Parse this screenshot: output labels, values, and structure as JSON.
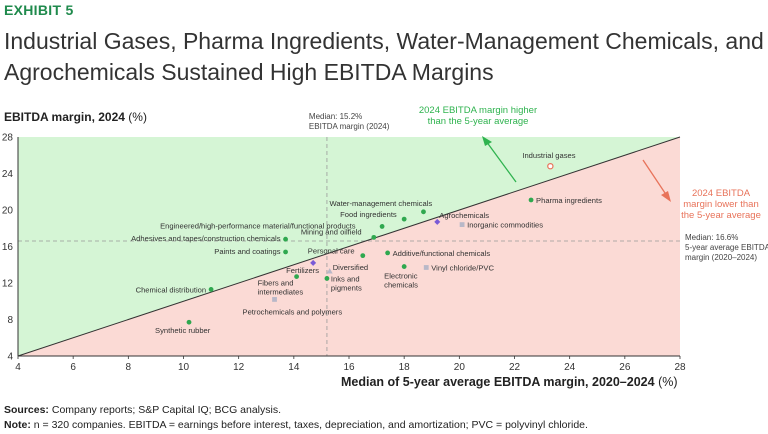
{
  "exhibit": "EXHIBIT 5",
  "title": "Industrial Gases, Pharma Ingredients, Water-Management Chemicals, and Agrochemicals Sustained High EBITDA Margins",
  "chart_data": {
    "type": "scatter",
    "ylabel_bold": "EBITDA margin, 2024",
    "ylabel_unit": "(%)",
    "xlabel_bold": "Median of 5-year average EBITDA margin, 2020–2024",
    "xlabel_unit": "(%)",
    "xlim": [
      4,
      28
    ],
    "ylim": [
      4,
      28
    ],
    "x_ticks": [
      4,
      6,
      8,
      10,
      12,
      14,
      16,
      18,
      20,
      22,
      24,
      26,
      28
    ],
    "y_ticks": [
      4,
      8,
      12,
      16,
      20,
      24,
      28
    ],
    "diagonal_from": [
      4,
      4
    ],
    "diagonal_to": [
      28,
      28
    ],
    "region_colors": {
      "above": "#d5f5d5",
      "below": "#fbdad5"
    },
    "median_vertical": {
      "value": 15.2,
      "lines": [
        "Median: 15.2%",
        "EBITDA margin (2024)"
      ]
    },
    "median_horizontal": {
      "value": 16.6,
      "lines": [
        "Median: 16.6%",
        "5-year average EBITDA",
        "margin (2020–2024)"
      ]
    },
    "annotation_higher": {
      "lines": [
        "2024 EBITDA margin higher",
        "than the 5-year average"
      ],
      "color": "#2fb34f"
    },
    "annotation_lower": {
      "lines": [
        "2024 EBITDA",
        "margin lower than",
        "the 5-year average"
      ],
      "color": "#e8735a"
    },
    "points": [
      {
        "x": 23.3,
        "y": 24.8,
        "lines": [
          "Industrial gases"
        ],
        "marker": "circle-open",
        "color": "#e8735a"
      },
      {
        "x": 22.6,
        "y": 21.1,
        "lines": [
          "Pharma ingredients"
        ],
        "marker": "circle",
        "color": "#2fa84f"
      },
      {
        "x": 18.7,
        "y": 19.8,
        "lines": [
          "Water-management chemicals"
        ],
        "marker": "circle",
        "color": "#2fa84f"
      },
      {
        "x": 18.0,
        "y": 19.0,
        "lines": [
          "Food ingredients"
        ],
        "marker": "circle",
        "color": "#2fa84f"
      },
      {
        "x": 19.2,
        "y": 18.7,
        "lines": [
          "Agrochemicals"
        ],
        "marker": "diamond",
        "color": "#7a5ad6"
      },
      {
        "x": 20.1,
        "y": 18.4,
        "lines": [
          "Inorganic commodities"
        ],
        "marker": "square",
        "color": "#b8b8c8"
      },
      {
        "x": 17.2,
        "y": 18.2,
        "lines": [
          "Engineered/high-performance material/functional products"
        ],
        "marker": "circle",
        "color": "#2fa84f"
      },
      {
        "x": 16.9,
        "y": 17.0,
        "lines": [
          "Mining and oilfield"
        ],
        "marker": "circle",
        "color": "#2fa84f"
      },
      {
        "x": 13.7,
        "y": 16.8,
        "lines": [
          "Adhesives and tapes/construction chemicals"
        ],
        "marker": "circle",
        "color": "#2fa84f"
      },
      {
        "x": 13.7,
        "y": 15.4,
        "lines": [
          "Paints and coatings"
        ],
        "marker": "circle",
        "color": "#2fa84f"
      },
      {
        "x": 16.5,
        "y": 15.0,
        "lines": [
          "Personal care"
        ],
        "marker": "circle",
        "color": "#2fa84f"
      },
      {
        "x": 17.4,
        "y": 15.3,
        "lines": [
          "Additive/functional chemicals"
        ],
        "marker": "circle",
        "color": "#2fa84f"
      },
      {
        "x": 14.7,
        "y": 14.2,
        "lines": [
          "Fertilizers"
        ],
        "marker": "diamond",
        "color": "#7a5ad6"
      },
      {
        "x": 15.3,
        "y": 13.3,
        "lines": [
          "Diversified"
        ],
        "marker": "triangle",
        "color": "#b8b8c8"
      },
      {
        "x": 18.8,
        "y": 13.7,
        "lines": [
          "Vinyl chloride/PVC"
        ],
        "marker": "square",
        "color": "#b8b8c8"
      },
      {
        "x": 18.0,
        "y": 13.8,
        "lines": [
          "Electronic",
          "chemicals"
        ],
        "marker": "circle",
        "color": "#2fa84f"
      },
      {
        "x": 15.2,
        "y": 12.5,
        "lines": [
          "Inks and",
          "pigments"
        ],
        "marker": "circle",
        "color": "#2fa84f"
      },
      {
        "x": 14.1,
        "y": 12.7,
        "lines": [
          "Fibers and",
          "intermediates"
        ],
        "marker": "circle",
        "color": "#2fa84f"
      },
      {
        "x": 11.0,
        "y": 11.3,
        "lines": [
          "Chemical distribution"
        ],
        "marker": "circle",
        "color": "#2fa84f"
      },
      {
        "x": 13.3,
        "y": 10.2,
        "lines": [
          "Petrochemicals and polymers"
        ],
        "marker": "square",
        "color": "#b8b8c8"
      },
      {
        "x": 10.2,
        "y": 7.7,
        "lines": [
          "Synthetic rubber"
        ],
        "marker": "circle",
        "color": "#2fa84f"
      }
    ]
  },
  "footer": {
    "sources_label": "Sources:",
    "sources_text": "Company reports; S&P Capital IQ; BCG analysis.",
    "note_label": "Note:",
    "note_text": "n = 320 companies. EBITDA = earnings before interest, taxes, depreciation, and amortization; PVC = polyvinyl chloride."
  }
}
